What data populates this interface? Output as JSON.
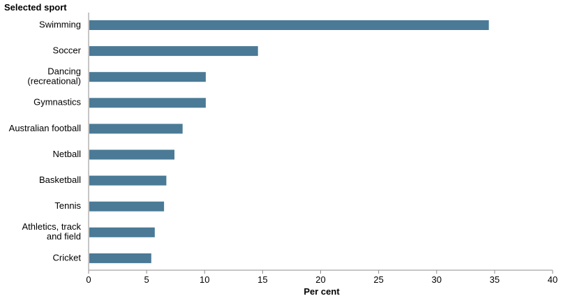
{
  "chart_data": {
    "type": "bar",
    "orientation": "horizontal",
    "y_axis_title": "Selected sport",
    "xlabel": "Per cent",
    "categories": [
      [
        "Swimming"
      ],
      [
        "Soccer"
      ],
      [
        "Dancing",
        "(recreational)"
      ],
      [
        "Gymnastics"
      ],
      [
        "Australian football"
      ],
      [
        "Netball"
      ],
      [
        "Basketball"
      ],
      [
        "Tennis"
      ],
      [
        "Athletics, track",
        "and field"
      ],
      [
        "Cricket"
      ]
    ],
    "values": [
      34.5,
      14.6,
      10.1,
      10.1,
      8.1,
      7.4,
      6.7,
      6.5,
      5.7,
      5.4
    ],
    "xlim": [
      0,
      40
    ],
    "xticks": [
      0,
      5,
      10,
      15,
      20,
      25,
      30,
      35,
      40
    ],
    "grid": false,
    "bar_color": "#4a7a96"
  }
}
